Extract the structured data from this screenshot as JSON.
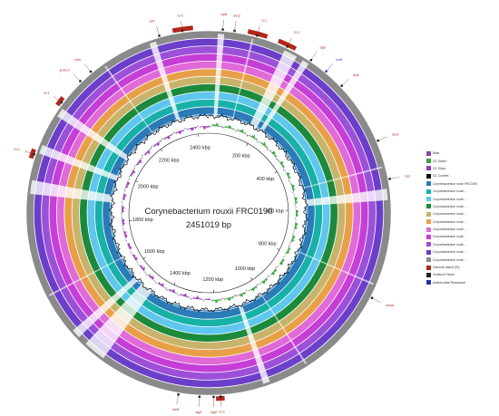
{
  "map": {
    "title": "Corynebacterium rouxii FRC0190",
    "length": "2451019 bp",
    "total_kbp": 2451
  },
  "kbp_ticks": [
    "200 kbp",
    "400 kbp",
    "600 kbp",
    "800 kbp",
    "1000 kbp",
    "1200 kbp",
    "1400 kbp",
    "1600 kbp",
    "1800 kbp",
    "2000 kbp",
    "2200 kbp",
    "2400 kbp"
  ],
  "rings": [
    {
      "name": "Blast",
      "color": "#8e44ad"
    },
    {
      "name": "GC Content",
      "color": "#111111"
    },
    {
      "name": "GC Skew+",
      "color": "#3aa040"
    },
    {
      "name": "GC Skew-",
      "color": "#9b3fb5"
    },
    {
      "name": "Corynebacterium rouxii FRC0190",
      "color": "#2a7bb8"
    },
    {
      "name": "Corynebacterium rouxii ...",
      "color": "#17b1a8"
    },
    {
      "name": "Corynebacterium rouxii ...",
      "color": "#5fc6ee"
    },
    {
      "name": "Corynebacterium rouxii ...",
      "color": "#1c8a3a"
    },
    {
      "name": "Corynebacterium rouxii ...",
      "color": "#c8b36a"
    },
    {
      "name": "Corynebacterium rouxii ...",
      "color": "#e8a048"
    },
    {
      "name": "Corynebacterium rouxii ...",
      "color": "#e06ad8"
    },
    {
      "name": "Corynebacterium rouxii ...",
      "color": "#c53fd6"
    },
    {
      "name": "Corynebacterium rouxii ...",
      "color": "#9c50d8"
    },
    {
      "name": "Corynebacterium rouxii ...",
      "color": "#6b3fc9"
    },
    {
      "name": "Corynebacterium rouxii ...",
      "color": "#8a8a8a"
    },
    {
      "name": "Genomic Island (GI)",
      "color": "#b0271b"
    },
    {
      "name": "Virulence Factor",
      "color": "#222222"
    },
    {
      "name": "Antimicrobial Resistance",
      "color": "#2233aa"
    }
  ],
  "legend": {
    "items": [
      {
        "label": "Blast",
        "color": "#8e44ad"
      },
      {
        "label": "GC Skew+",
        "color": "#3aa040"
      },
      {
        "label": "GC Skew-",
        "color": "#9b3fb5"
      },
      {
        "label": "GC Content",
        "color": "#111111"
      },
      {
        "label": "Corynebacterium rouxii FRC0190",
        "color": "#2a7bb8"
      },
      {
        "label": "Corynebacterium rouxii ...",
        "color": "#17b1a8"
      },
      {
        "label": "Corynebacterium rouxii ...",
        "color": "#5fc6ee"
      },
      {
        "label": "Corynebacterium rouxii ...",
        "color": "#1c8a3a"
      },
      {
        "label": "Corynebacterium rouxii ...",
        "color": "#c8b36a"
      },
      {
        "label": "Corynebacterium rouxii ...",
        "color": "#e8a048"
      },
      {
        "label": "Corynebacterium rouxii ...",
        "color": "#e06ad8"
      },
      {
        "label": "Corynebacterium rouxii ...",
        "color": "#c53fd6"
      },
      {
        "label": "Corynebacterium rouxii ...",
        "color": "#9c50d8"
      },
      {
        "label": "Corynebacterium rouxii ...",
        "color": "#6b3fc9"
      },
      {
        "label": "Corynebacterium rouxii ...",
        "color": "#8a8a8a"
      },
      {
        "label": "Genomic Island (GI)",
        "color": "#b0271b"
      },
      {
        "label": "Virulence Factor",
        "color": "#222222"
      },
      {
        "label": "Antimicrobial Resistance",
        "color": "#2233aa"
      }
    ]
  },
  "gaps_kbp": [
    [
      20,
      34
    ],
    [
      170,
      200
    ],
    [
      215,
      230
    ],
    [
      560,
      585
    ],
    [
      1090,
      1105
    ],
    [
      1470,
      1520
    ],
    [
      1540,
      1560
    ],
    [
      1880,
      1910
    ],
    [
      1970,
      1990
    ],
    [
      2060,
      2080
    ],
    [
      2320,
      2335
    ]
  ],
  "genomic_islands": [
    {
      "label": "GI 1",
      "start_kbp": 83,
      "end_kbp": 125
    },
    {
      "label": "GI 2",
      "start_kbp": 150,
      "end_kbp": 190
    },
    {
      "label": "GI 3",
      "start_kbp": 1192,
      "end_kbp": 1210
    },
    {
      "label": "GI 4",
      "start_kbp": 1955,
      "end_kbp": 1975
    },
    {
      "label": "GI 5",
      "start_kbp": 2080,
      "end_kbp": 2100
    },
    {
      "label": "GI 6",
      "start_kbp": 2375,
      "end_kbp": 2418
    }
  ],
  "gene_labels": [
    {
      "label": "rpfC",
      "kbp": 2345,
      "color": "red"
    },
    {
      "label": "GI 6",
      "kbp": 2395,
      "color": "red"
    },
    {
      "label": "tcpB",
      "kbp": 30,
      "color": "red"
    },
    {
      "label": "aroQ",
      "kbp": 55,
      "color": "red"
    },
    {
      "label": "GI 1",
      "kbp": 104,
      "color": "red"
    },
    {
      "label": "GI 2",
      "kbp": 172,
      "color": "red"
    },
    {
      "label": "sigD",
      "kbp": 230,
      "color": "red"
    },
    {
      "label": "lmrB",
      "kbp": 270,
      "color": "blue"
    },
    {
      "label": "lpdA",
      "kbp": 315,
      "color": "red"
    },
    {
      "label": "aroA",
      "kbp": 455,
      "color": "red"
    },
    {
      "label": "mpt",
      "kbp": 540,
      "color": "red"
    },
    {
      "label": "ompA",
      "kbp": 800,
      "color": "red"
    },
    {
      "label": "GI 3",
      "kbp": 1200,
      "color": "red"
    },
    {
      "label": "fagD",
      "kbp": 1215,
      "color": "red"
    },
    {
      "label": "fagA",
      "kbp": 1245,
      "color": "red"
    },
    {
      "label": "tkeB",
      "kbp": 1290,
      "color": "red"
    },
    {
      "label": "GI 4",
      "kbp": 1965,
      "color": "red"
    },
    {
      "label": "GI 5",
      "kbp": 2090,
      "color": "red"
    },
    {
      "label": "groEL2",
      "kbp": 2150,
      "color": "red"
    },
    {
      "label": "mtrA",
      "kbp": 2180,
      "color": "red"
    }
  ]
}
